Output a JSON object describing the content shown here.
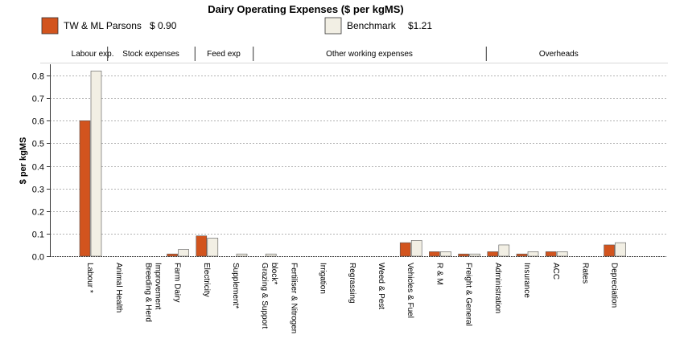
{
  "chart_data": {
    "type": "bar",
    "title": "Dairy Operating Expenses ($ per kgMS)",
    "ylabel": "$ per kgMS",
    "xlabel": "",
    "ylim": [
      0,
      0.85
    ],
    "yticks": [
      "0.0",
      "0.1",
      "0.2",
      "0.3",
      "0.4",
      "0.5",
      "0.6",
      "0.7",
      "0.8"
    ],
    "grid": true,
    "legend_position": "top",
    "groups": [
      {
        "label": "Labour exp.",
        "from": 0,
        "to": 0
      },
      {
        "label": "Stock expenses",
        "from": 1,
        "to": 3
      },
      {
        "label": "Feed exp",
        "from": 4,
        "to": 5
      },
      {
        "label": "Other working expenses",
        "from": 6,
        "to": 13
      },
      {
        "label": "Overheads",
        "from": 14,
        "to": 18
      }
    ],
    "categories": [
      [
        "Labour *"
      ],
      [
        "Animal Health"
      ],
      [
        "Breeding & Herd",
        "Improvement"
      ],
      [
        "Farm Dairy"
      ],
      [
        "Electricity"
      ],
      [
        "Supplement*"
      ],
      [
        "Grazing & Support",
        "block*"
      ],
      [
        "Fertiliser & Nitrogen"
      ],
      [
        "Irrigation"
      ],
      [
        "Regrassing"
      ],
      [
        "Weed & Pest"
      ],
      [
        "Vehicles & Fuel"
      ],
      [
        "R & M"
      ],
      [
        "Freight & General"
      ],
      [
        "Administration"
      ],
      [
        "Insurance"
      ],
      [
        "ACC"
      ],
      [
        "Rates"
      ],
      [
        "Depreciation"
      ]
    ],
    "series": [
      {
        "name": "TW & ML Parsons",
        "total": "$ 0.90",
        "color": "#D2541E",
        "values": [
          0.6,
          0,
          0,
          0.01,
          0.09,
          0,
          0,
          0,
          0,
          0,
          0,
          0.06,
          0.02,
          0.01,
          0.02,
          0.01,
          0.02,
          0,
          0.05
        ]
      },
      {
        "name": "Benchmark",
        "total": "$1.21",
        "color": "#F2EFE4",
        "values": [
          0.82,
          0,
          0,
          0.03,
          0.08,
          0.01,
          0.01,
          0,
          0,
          0,
          0,
          0.07,
          0.02,
          0.01,
          0.05,
          0.02,
          0.02,
          0,
          0.06
        ]
      }
    ]
  }
}
